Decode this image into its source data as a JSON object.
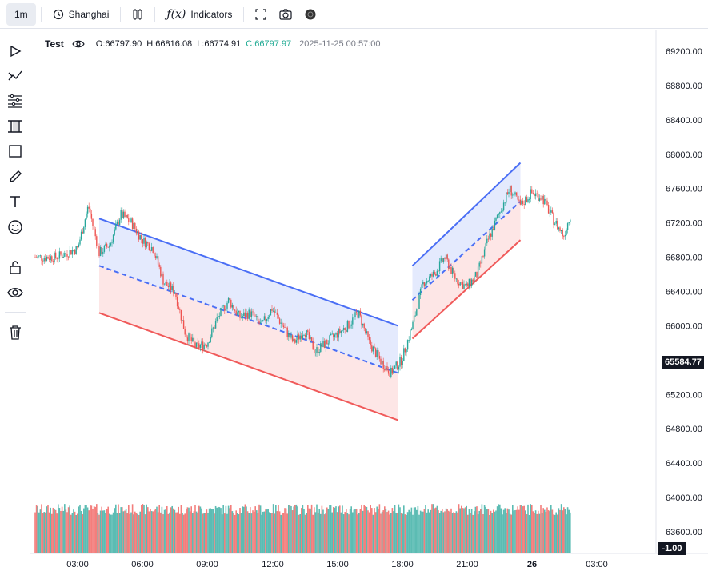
{
  "toolbar": {
    "interval": "1m",
    "timezone": "Shanghai",
    "indicators_label": "Indicators"
  },
  "legend": {
    "symbol": "Test",
    "open": "O:66797.90",
    "high": "H:66816.08",
    "low": "L:66774.91",
    "close": "C:66797.97",
    "datetime": "2025-11-25 00:57:00"
  },
  "price_axis": {
    "labels": [
      "69200.00",
      "68800.00",
      "68400.00",
      "68000.00",
      "67600.00",
      "67200.00",
      "66800.00",
      "66400.00",
      "66000.00",
      "65200.00",
      "64800.00",
      "64400.00",
      "64000.00",
      "63600.00"
    ],
    "current_price": "65584.77",
    "volume_label": "-1.00"
  },
  "time_axis": {
    "labels": [
      "03:00",
      "06:00",
      "09:00",
      "12:00",
      "15:00",
      "18:00",
      "21:00",
      "26",
      "03:00"
    ]
  },
  "sidebar": {
    "tools": [
      "cursor-icon",
      "trend-line-icon",
      "fib-icon",
      "channel-icon",
      "rectangle-icon",
      "brush-icon",
      "text-icon",
      "emoji-icon",
      "lock-icon",
      "eye-icon",
      "trash-icon"
    ]
  },
  "colors": {
    "up": "#26a69a",
    "down": "#ef5350",
    "channel_top": "#4a6ef5",
    "channel_bottom": "#f05a5a",
    "fill_top": "#dfe6fd",
    "fill_bottom": "#fde2e2"
  },
  "chart_data": {
    "type": "candlestick",
    "symbol": "Test",
    "timeframe": "1m",
    "series_close_path": [
      [
        "02:00",
        66800
      ],
      [
        "03:00",
        66900
      ],
      [
        "03:30",
        67400
      ],
      [
        "04:00",
        66850
      ],
      [
        "04:30",
        66950
      ],
      [
        "05:00",
        67300
      ],
      [
        "05:30",
        67200
      ],
      [
        "06:00",
        67000
      ],
      [
        "06:30",
        66900
      ],
      [
        "07:00",
        66500
      ],
      [
        "07:30",
        66400
      ],
      [
        "08:00",
        65900
      ],
      [
        "08:30",
        65750
      ],
      [
        "09:00",
        65800
      ],
      [
        "09:30",
        66100
      ],
      [
        "10:00",
        66300
      ],
      [
        "10:30",
        66100
      ],
      [
        "11:00",
        66150
      ],
      [
        "11:30",
        66000
      ],
      [
        "12:00",
        66200
      ],
      [
        "12:30",
        66000
      ],
      [
        "13:00",
        65800
      ],
      [
        "13:30",
        65950
      ],
      [
        "14:00",
        65700
      ],
      [
        "14:30",
        65800
      ],
      [
        "15:00",
        65900
      ],
      [
        "15:30",
        66000
      ],
      [
        "16:00",
        66150
      ],
      [
        "16:30",
        65800
      ],
      [
        "17:00",
        65600
      ],
      [
        "17:30",
        65450
      ],
      [
        "18:00",
        65600
      ],
      [
        "18:30",
        66000
      ],
      [
        "19:00",
        66500
      ],
      [
        "19:30",
        66600
      ],
      [
        "20:00",
        66800
      ],
      [
        "20:30",
        66550
      ],
      [
        "21:00",
        66450
      ],
      [
        "21:30",
        66600
      ],
      [
        "22:00",
        67000
      ],
      [
        "22:30",
        67300
      ],
      [
        "23:00",
        67600
      ],
      [
        "23:30",
        67400
      ],
      [
        "00:00",
        67550
      ],
      [
        "00:30",
        67500
      ],
      [
        "01:00",
        67250
      ],
      [
        "01:30",
        67050
      ],
      [
        "02:00",
        67450
      ]
    ],
    "channels": [
      {
        "top": [
          [
            "04:00",
            67250
          ],
          [
            "17:50",
            66000
          ]
        ],
        "middle": [
          [
            "04:00",
            66700
          ],
          [
            "17:50",
            65450
          ]
        ],
        "bottom": [
          [
            "04:00",
            66150
          ],
          [
            "17:50",
            64900
          ]
        ]
      },
      {
        "top": [
          [
            "18:30",
            66700
          ],
          [
            "23:30",
            67900
          ]
        ],
        "middle": [
          [
            "18:30",
            66300
          ],
          [
            "23:30",
            67450
          ]
        ],
        "bottom": [
          [
            "18:30",
            65850
          ],
          [
            "23:30",
            67000
          ]
        ]
      }
    ],
    "ylim": [
      63400,
      69400
    ],
    "volume": {
      "visible": true
    }
  }
}
